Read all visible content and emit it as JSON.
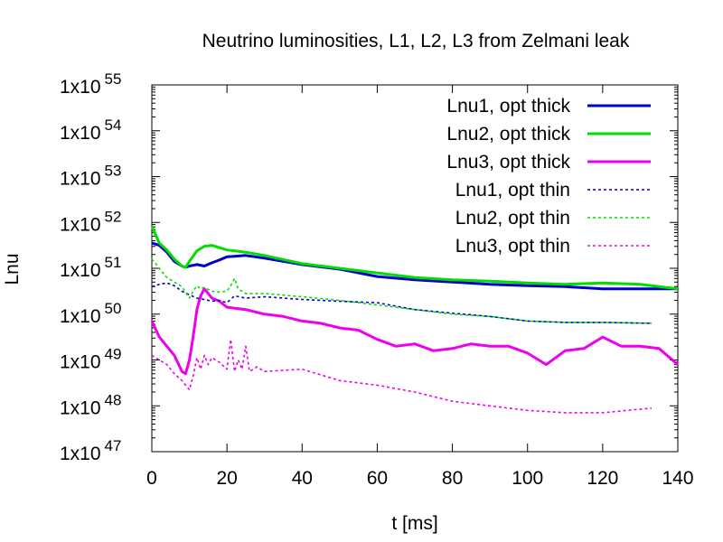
{
  "chart_data": {
    "type": "line",
    "title": "Neutrino luminosities, L1, L2, L3 from Zelmani leak",
    "xlabel": "t [ms]",
    "ylabel": "Lnu",
    "xlim": [
      0,
      140
    ],
    "ylim_log10": [
      47,
      55
    ],
    "yscale": "log",
    "grid": false,
    "legend_position": "top-right",
    "x_ticks": [
      0,
      20,
      40,
      60,
      80,
      100,
      120,
      140
    ],
    "x_tick_labels": [
      "0",
      "20",
      "40",
      "60",
      "80",
      "100",
      "120",
      "140"
    ],
    "y_ticks_log10": [
      47,
      48,
      49,
      50,
      51,
      52,
      53,
      54,
      55
    ],
    "y_tick_base": "1x10",
    "y_tick_exponents": [
      "47",
      "48",
      "49",
      "50",
      "51",
      "52",
      "53",
      "54",
      "55"
    ],
    "series": [
      {
        "name": "Lnu1, opt thick",
        "color": "#0000cc",
        "style": "solid",
        "x": [
          0,
          2,
          4,
          6,
          8,
          9,
          10,
          12,
          14,
          16,
          18,
          20,
          25,
          30,
          40,
          50,
          60,
          70,
          80,
          90,
          100,
          110,
          120,
          130,
          140
        ],
        "log10_y": [
          51.55,
          51.5,
          51.35,
          51.15,
          51.05,
          51.02,
          51.05,
          51.08,
          51.05,
          51.12,
          51.18,
          51.25,
          51.28,
          51.22,
          51.08,
          50.98,
          50.82,
          50.75,
          50.7,
          50.65,
          50.62,
          50.6,
          50.55,
          50.55,
          50.55
        ]
      },
      {
        "name": "Lnu2, opt thick",
        "color": "#00dd00",
        "style": "solid",
        "x": [
          0,
          2,
          4,
          6,
          8,
          9,
          10,
          12,
          14,
          16,
          18,
          20,
          25,
          30,
          40,
          50,
          60,
          70,
          80,
          90,
          100,
          110,
          120,
          130,
          140
        ],
        "log10_y": [
          51.92,
          51.55,
          51.4,
          51.2,
          51.05,
          51.02,
          51.15,
          51.38,
          51.48,
          51.5,
          51.45,
          51.4,
          51.35,
          51.28,
          51.1,
          51.0,
          50.9,
          50.8,
          50.75,
          50.72,
          50.68,
          50.65,
          50.68,
          50.65,
          50.55
        ]
      },
      {
        "name": "Lnu3, opt thick",
        "color": "#ee00ee",
        "style": "solid",
        "x": [
          0,
          2,
          4,
          6,
          8,
          9,
          10,
          11,
          12,
          13,
          14,
          16,
          18,
          20,
          25,
          30,
          35,
          40,
          45,
          50,
          55,
          60,
          65,
          70,
          75,
          80,
          85,
          90,
          95,
          100,
          105,
          110,
          115,
          120,
          125,
          130,
          135,
          140
        ],
        "log10_y": [
          49.85,
          49.5,
          49.3,
          49.1,
          48.75,
          48.7,
          49.0,
          49.5,
          50.1,
          50.4,
          50.55,
          50.35,
          50.28,
          50.15,
          50.1,
          50.0,
          49.95,
          49.85,
          49.8,
          49.7,
          49.65,
          49.45,
          49.3,
          49.35,
          49.2,
          49.25,
          49.35,
          49.3,
          49.3,
          49.15,
          48.9,
          49.2,
          49.25,
          49.5,
          49.3,
          49.3,
          49.25,
          48.9
        ]
      },
      {
        "name": "Lnu1, opt thin",
        "color": "#0000cc",
        "style": "dashed",
        "x": [
          0,
          2,
          4,
          6,
          8,
          10,
          12,
          14,
          16,
          18,
          20,
          22,
          25,
          30,
          40,
          50,
          60,
          70,
          80,
          90,
          100,
          110,
          120,
          133
        ],
        "log10_y": [
          50.6,
          50.65,
          50.68,
          50.62,
          50.5,
          50.42,
          50.35,
          50.32,
          50.28,
          50.3,
          50.25,
          50.4,
          50.35,
          50.38,
          50.32,
          50.28,
          50.25,
          50.1,
          50.02,
          49.95,
          49.85,
          49.82,
          49.82,
          49.8
        ]
      },
      {
        "name": "Lnu2, opt thin",
        "color": "#00dd00",
        "style": "dashed",
        "x": [
          0,
          1,
          2,
          4,
          6,
          8,
          10,
          11,
          12,
          13,
          14,
          16,
          18,
          20,
          21,
          22,
          23,
          25,
          30,
          40,
          50,
          60,
          70,
          80,
          90,
          100,
          110,
          120,
          133
        ],
        "log10_y": [
          51.2,
          51.1,
          51.0,
          50.8,
          50.7,
          50.6,
          50.35,
          50.5,
          50.62,
          50.55,
          50.58,
          50.5,
          50.48,
          50.5,
          50.62,
          50.78,
          50.55,
          50.45,
          50.45,
          50.38,
          50.3,
          50.2,
          50.1,
          50.0,
          49.95,
          49.85,
          49.82,
          49.82,
          49.8
        ]
      },
      {
        "name": "Lnu3, opt thin",
        "color": "#ee00ee",
        "style": "dashed",
        "x": [
          0,
          2,
          4,
          6,
          8,
          10,
          11,
          12,
          13,
          14,
          15,
          16,
          18,
          20,
          21,
          22,
          23,
          24,
          25,
          26,
          28,
          30,
          40,
          50,
          60,
          70,
          80,
          90,
          100,
          110,
          120,
          133
        ],
        "log10_y": [
          49.1,
          49.0,
          48.9,
          48.7,
          48.55,
          48.35,
          48.65,
          49.05,
          48.8,
          49.1,
          48.9,
          49.05,
          48.95,
          48.8,
          49.45,
          48.75,
          49.0,
          48.8,
          49.3,
          48.75,
          48.85,
          48.75,
          48.8,
          48.55,
          48.45,
          48.3,
          48.1,
          48.0,
          47.9,
          47.85,
          47.85,
          47.95
        ]
      }
    ]
  }
}
